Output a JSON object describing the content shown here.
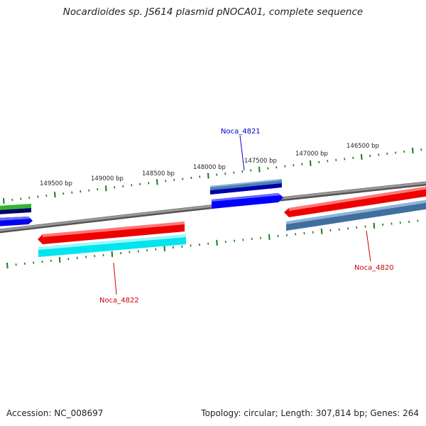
{
  "title": "Nocardioides sp. JS614 plasmid pNOCA01, complete sequence",
  "footer": {
    "accession": "Accession: NC_008697",
    "summary": "Topology: circular; Length: 307,814 bp; Genes: 264"
  },
  "ticks": [
    {
      "label": "149500 bp"
    },
    {
      "label": "149000 bp"
    },
    {
      "label": "148500 bp"
    },
    {
      "label": "148000 bp"
    },
    {
      "label": "147500 bp"
    },
    {
      "label": "147000 bp"
    },
    {
      "label": "146500 bp"
    }
  ],
  "genes": [
    {
      "label": "Noca_4821",
      "color": "#0000cc"
    },
    {
      "label": "Noca_4822",
      "color": "#dd0000"
    },
    {
      "label": "Noca_4820",
      "color": "#dd0000"
    }
  ],
  "colors": {
    "backbone": "#888888",
    "tick": "#1a7a1a",
    "forward_gene": "#0000ff",
    "reverse_gene": "#ff0000",
    "steelblue": "#4a80b8",
    "cyan": "#00e5ee",
    "green": "#33cc33",
    "navy": "#000066"
  }
}
